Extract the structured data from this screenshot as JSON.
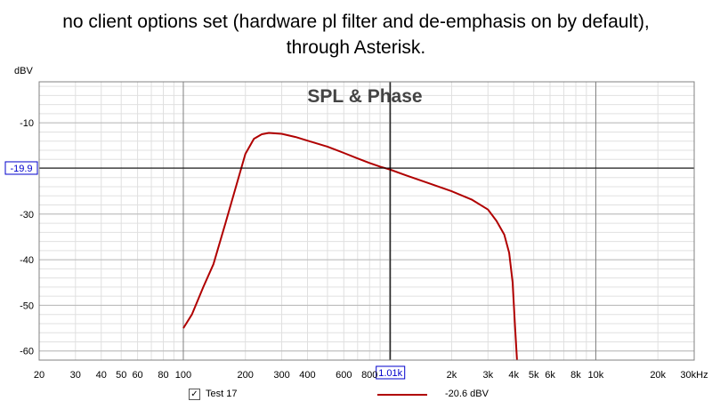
{
  "title_lines": [
    "no client options set (hardware pl filter and de-emphasis on by default),",
    "through Asterisk."
  ],
  "chart_data": {
    "type": "line",
    "title": "SPL & Phase",
    "ylabel": "dBV",
    "x_scale": "log",
    "xlim": [
      20,
      30000
    ],
    "ylim": [
      -62,
      -1
    ],
    "grid": true,
    "x_ticks": [
      {
        "v": 20,
        "label": "20"
      },
      {
        "v": 30,
        "label": "30"
      },
      {
        "v": 40,
        "label": "40"
      },
      {
        "v": 50,
        "label": "50"
      },
      {
        "v": 60,
        "label": "60"
      },
      {
        "v": 80,
        "label": "80"
      },
      {
        "v": 100,
        "label": "100"
      },
      {
        "v": 200,
        "label": "200"
      },
      {
        "v": 300,
        "label": "300"
      },
      {
        "v": 400,
        "label": "400"
      },
      {
        "v": 600,
        "label": "600"
      },
      {
        "v": 800,
        "label": "800"
      },
      {
        "v": 2000,
        "label": "2k"
      },
      {
        "v": 3000,
        "label": "3k"
      },
      {
        "v": 4000,
        "label": "4k"
      },
      {
        "v": 5000,
        "label": "5k"
      },
      {
        "v": 6000,
        "label": "6k"
      },
      {
        "v": 8000,
        "label": "8k"
      },
      {
        "v": 10000,
        "label": "10k"
      },
      {
        "v": 20000,
        "label": "20k"
      },
      {
        "v": 30000,
        "label": "30kHz"
      }
    ],
    "y_ticks": [
      {
        "v": -10,
        "label": "-10"
      },
      {
        "v": -30,
        "label": "-30"
      },
      {
        "v": -40,
        "label": "-40"
      },
      {
        "v": -50,
        "label": "-50"
      },
      {
        "v": -60,
        "label": "-60"
      }
    ],
    "cursor": {
      "x": 1010,
      "y": -19.9,
      "x_label": "1.01k",
      "y_label": "-19.9"
    },
    "series": [
      {
        "name": "Test 17",
        "color": "#b00000",
        "legend_value": "-20.6 dBV",
        "x": [
          100,
          110,
          125,
          140,
          160,
          180,
          200,
          220,
          240,
          260,
          300,
          350,
          400,
          500,
          600,
          700,
          800,
          900,
          1000,
          1200,
          1500,
          2000,
          2500,
          3000,
          3300,
          3600,
          3800,
          3950,
          4050,
          4150
        ],
        "y": [
          -55,
          -52,
          -46,
          -41,
          -32,
          -24,
          -16.8,
          -13.5,
          -12.5,
          -12.2,
          -12.4,
          -13.1,
          -13.9,
          -15.2,
          -16.6,
          -17.8,
          -18.8,
          -19.6,
          -20.2,
          -21.5,
          -23.0,
          -25.0,
          -26.8,
          -29.0,
          -31.5,
          -34.5,
          -38.5,
          -45.0,
          -54.0,
          -62.0
        ]
      }
    ]
  }
}
